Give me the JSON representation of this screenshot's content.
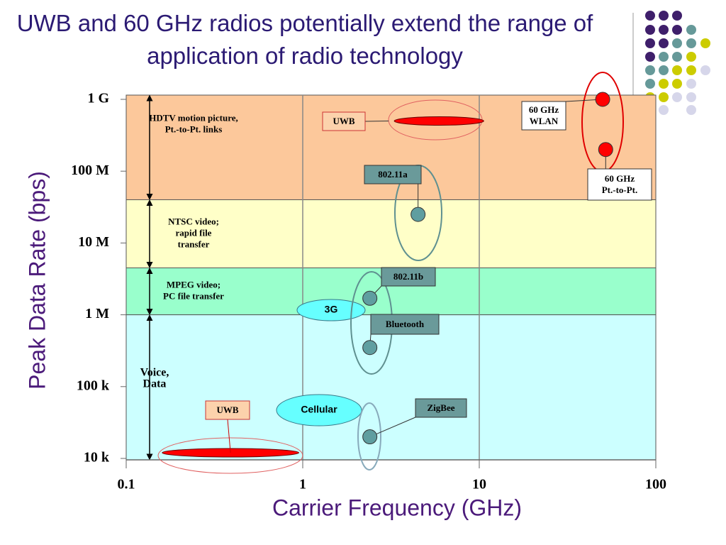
{
  "chart_data": {
    "type": "scatter",
    "title": "UWB and 60 GHz radios potentially extend the range of application of radio technology",
    "x_label": "Carrier Frequency (GHz)",
    "y_label": "Peak Data Rate (bps)",
    "xscale": "log",
    "yscale": "log",
    "xlim": [
      0.1,
      100
    ],
    "ylim": [
      10000,
      1000000000
    ],
    "xticks": [
      0.1,
      1,
      10,
      100
    ],
    "yticks": [
      {
        "value": 10000,
        "label": "10 k"
      },
      {
        "value": 100000,
        "label": "100 k"
      },
      {
        "value": 1000000,
        "label": "1 M"
      },
      {
        "value": 10000000,
        "label": "10 M"
      },
      {
        "value": 100000000,
        "label": "100 M"
      },
      {
        "value": 1000000000,
        "label": "1 G"
      }
    ],
    "grid": true,
    "bands": [
      {
        "from": 40000000,
        "to": 1000000000,
        "color": "#fcc89b",
        "label": [
          "HDTV motion picture,",
          "Pt.-to-Pt. links"
        ]
      },
      {
        "from": 4500000,
        "to": 40000000,
        "color": "#ffffc8",
        "label": [
          "NTSC video;",
          "rapid file",
          "transfer"
        ]
      },
      {
        "from": 1000000,
        "to": 4500000,
        "color": "#99ffcc",
        "label": [
          "MPEG video;",
          "PC file transfer"
        ]
      },
      {
        "from": 10000,
        "to": 1000000,
        "color": "#ccffff",
        "label": [
          "Voice,",
          "Data"
        ]
      }
    ],
    "series": [
      {
        "name": [
          "60 GHz",
          "WLAN"
        ],
        "color": "#ff0000",
        "x": [
          50
        ],
        "y": [
          1000000000
        ]
      },
      {
        "name": [
          "60 GHz",
          "Pt.-to-Pt."
        ],
        "color": "#ff0000",
        "x": [
          52
        ],
        "y": [
          200000000
        ]
      },
      {
        "name": [
          "802.11a"
        ],
        "color": "#5f9ea0",
        "x": [
          4.5
        ],
        "y": [
          25000000
        ]
      },
      {
        "name": [
          "802.11b"
        ],
        "color": "#5f9ea0",
        "x": [
          2.4
        ],
        "y": [
          1700000
        ]
      },
      {
        "name": [
          "Bluetooth"
        ],
        "color": "#5f9ea0",
        "x": [
          2.4
        ],
        "y": [
          350000
        ]
      },
      {
        "name": [
          "ZigBee"
        ],
        "color": "#5f9ea0",
        "x": [
          2.4
        ],
        "y": [
          20000
        ]
      }
    ],
    "ranges": [
      {
        "name": "UWB",
        "x": [
          3.3,
          10.6
        ],
        "y": 500000000,
        "color": "#ff0000"
      },
      {
        "name": "UWB",
        "x": [
          0.16,
          0.95
        ],
        "y": 12000,
        "color": "#ff0000"
      }
    ],
    "annotations": [
      "3G",
      "Cellular"
    ]
  }
}
